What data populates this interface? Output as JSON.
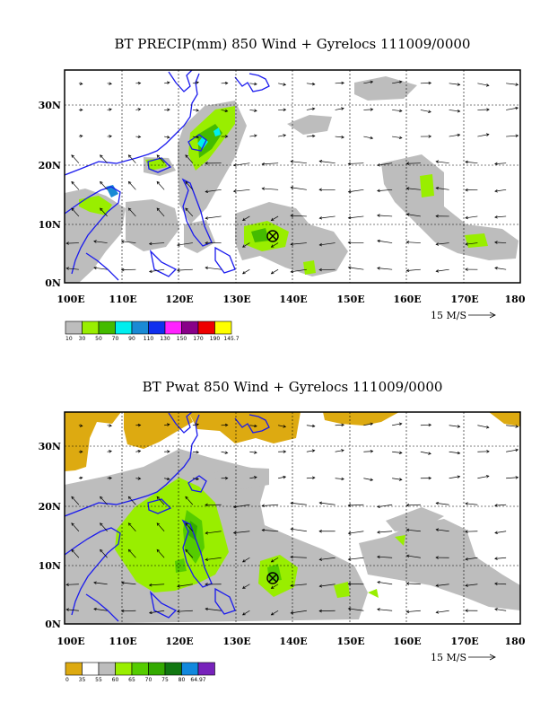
{
  "panels": [
    {
      "title": "BT PRECIP(mm) 850 Wind + Gyrelocs 111009/0000",
      "lon_ticks": [
        "100E",
        "110E",
        "120E",
        "130E",
        "140E",
        "150E",
        "160E",
        "170E",
        "180"
      ],
      "lat_ticks": [
        "0N",
        "10N",
        "20N",
        "30N"
      ],
      "vector_ref_label": "15 M/S",
      "legend": {
        "colors": [
          "#bdbdbd",
          "#99ee00",
          "#44bb00",
          "#00eeee",
          "#1a8ad4",
          "#1030ee",
          "#ff22ff",
          "#880088",
          "#ee0000",
          "#ffff00"
        ],
        "labels": [
          "10",
          "30",
          "50",
          "70",
          "90",
          "110",
          "130",
          "150",
          "170",
          "190",
          "145.7"
        ]
      }
    },
    {
      "title": "BT Pwat 850 Wind + Gyrelocs 111009/0000",
      "lon_ticks": [
        "100E",
        "110E",
        "120E",
        "130E",
        "140E",
        "150E",
        "160E",
        "170E",
        "180"
      ],
      "lat_ticks": [
        "0N",
        "10N",
        "20N",
        "30N"
      ],
      "vector_ref_label": "15 M/S",
      "legend": {
        "colors": [
          "#ddaa11",
          "#ffffff",
          "#bdbdbd",
          "#99ee00",
          "#55cc00",
          "#33aa00",
          "#117711",
          "#1188dd",
          "#7722bb"
        ],
        "labels": [
          "0",
          "35",
          "55",
          "60",
          "65",
          "70",
          "75",
          "80",
          "64.97"
        ]
      }
    }
  ],
  "gyre_marker": {
    "symbol": "circle-x",
    "lon": 136,
    "lat": 8
  }
}
